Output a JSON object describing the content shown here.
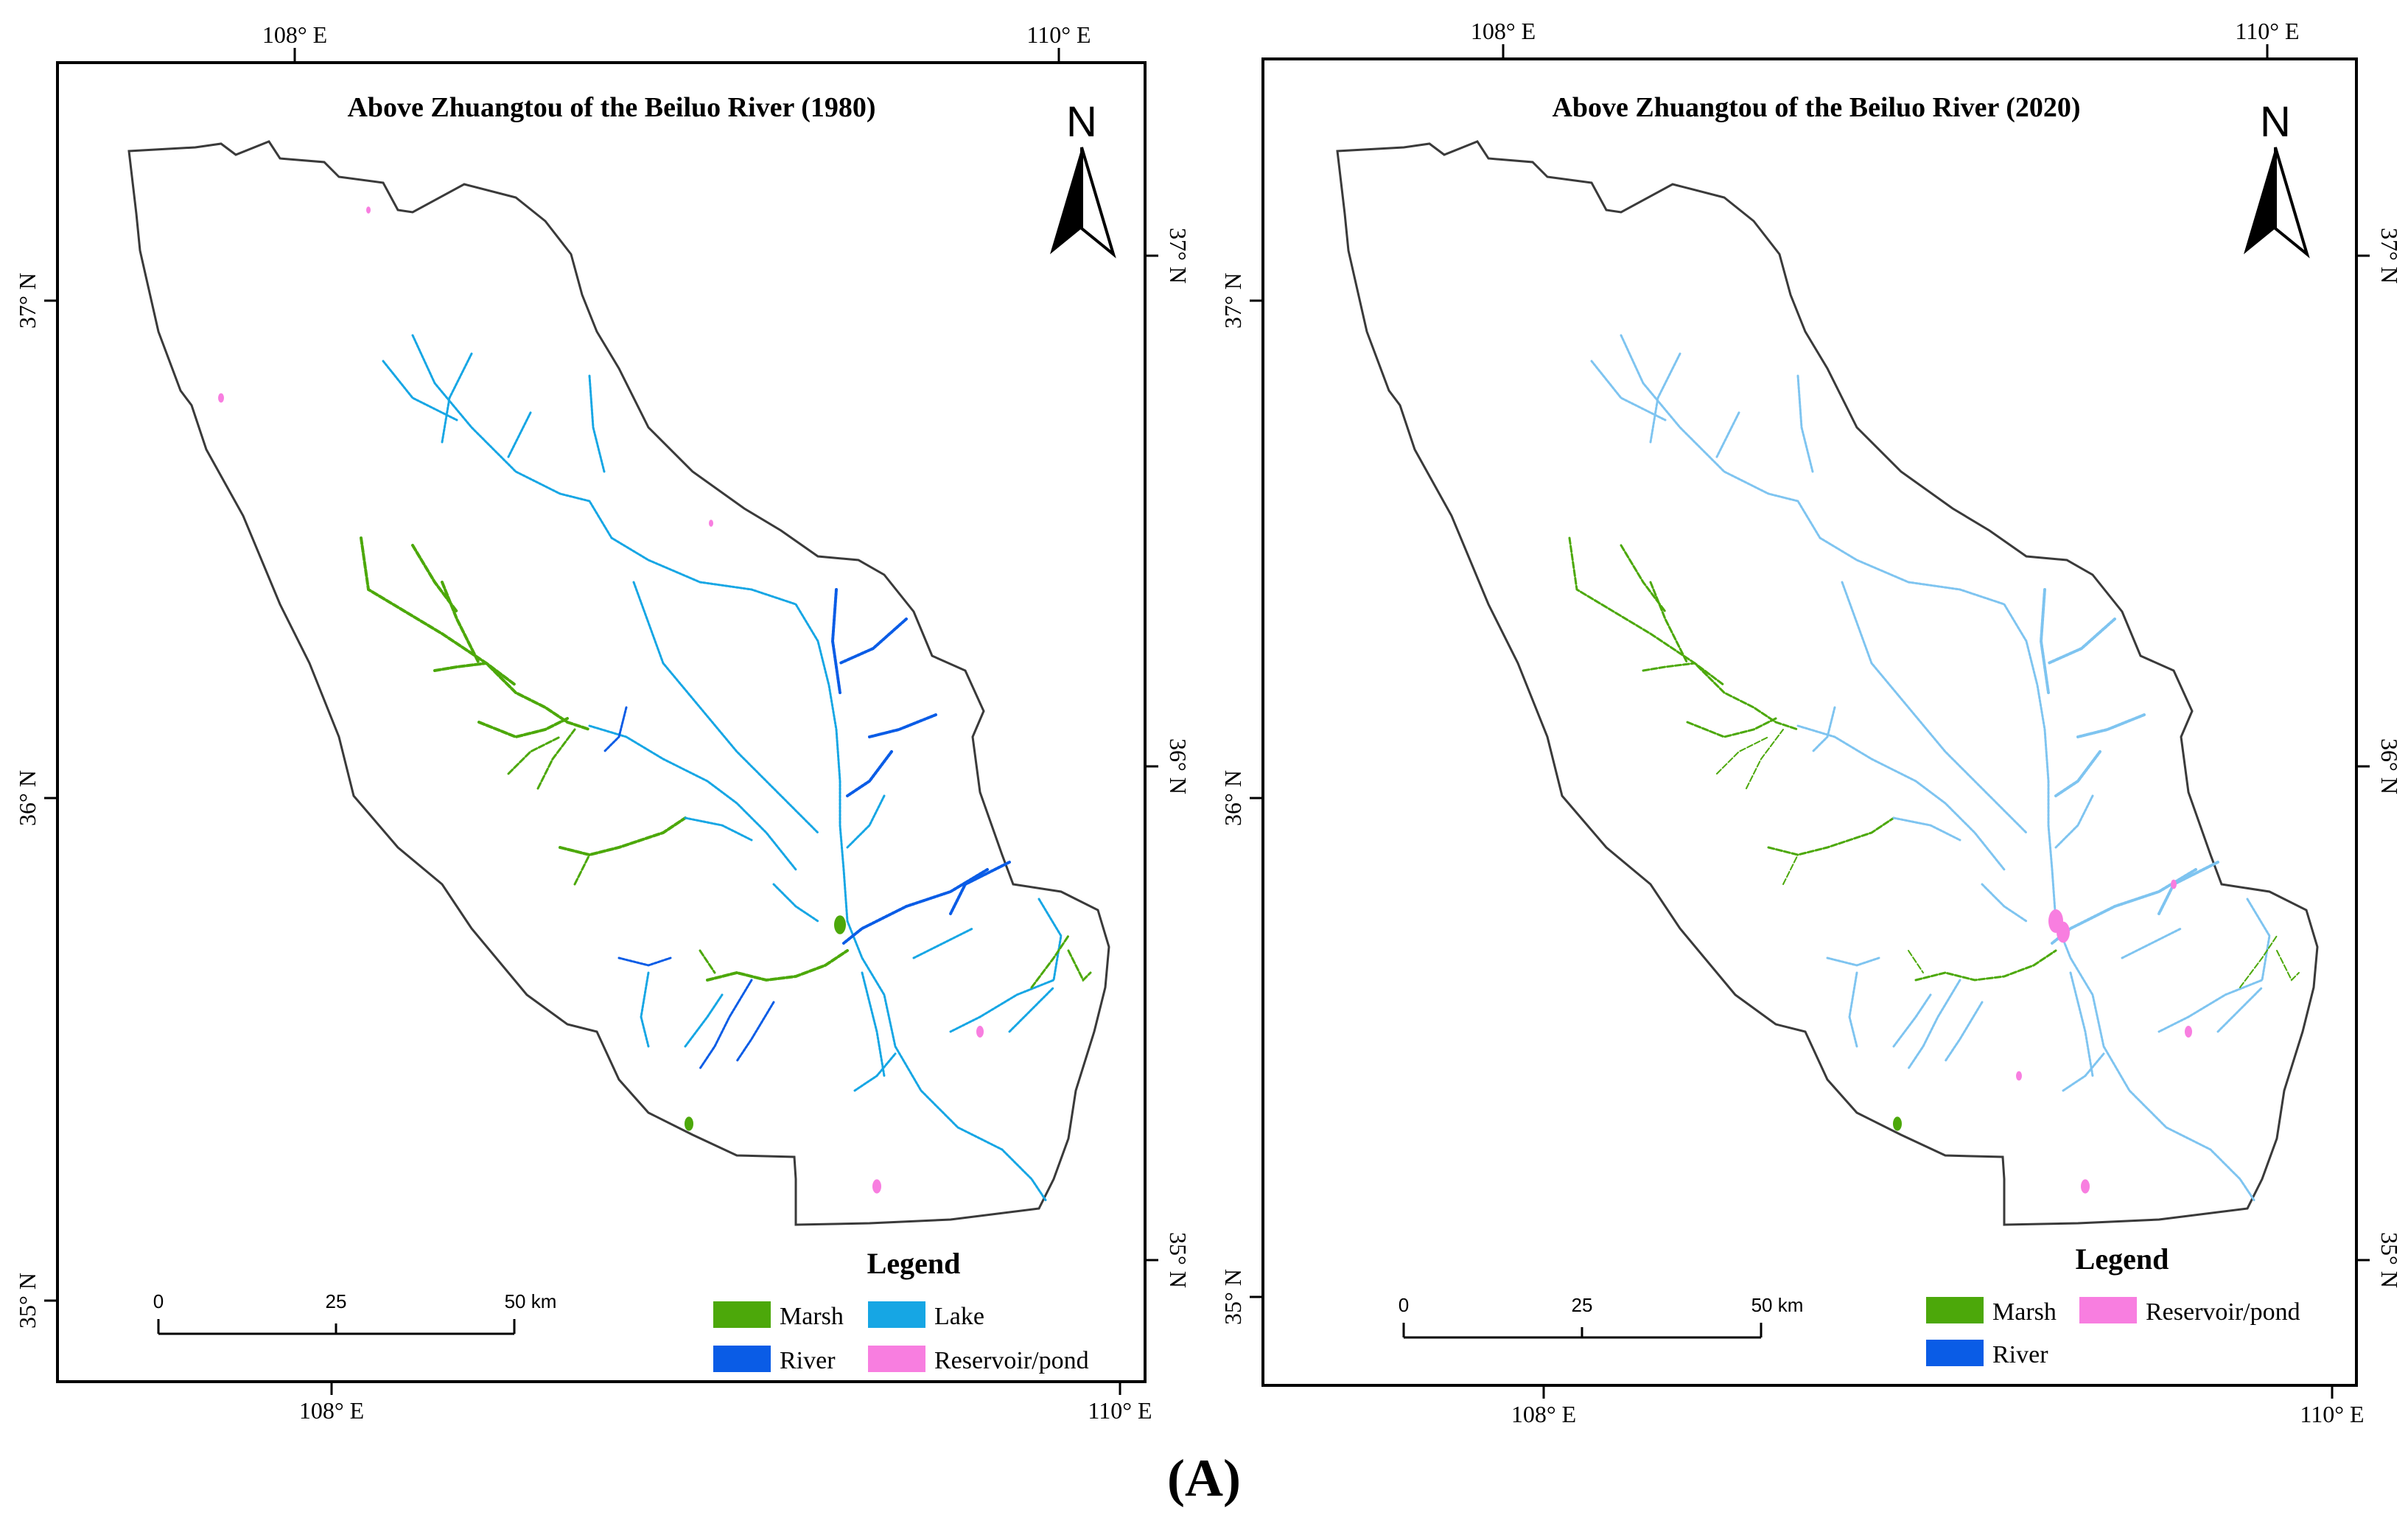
{
  "figure_label": "(A)",
  "colors": {
    "marsh": "#4ca80a",
    "river": "#0a5ce6",
    "lake": "#16a6e4",
    "reservoir": "#f87ee0",
    "lake_light": "#7ec4f0",
    "frame": "#000000",
    "basin_outline": "#3a3a3a"
  },
  "panels": [
    {
      "title": "Above Zhuangtou of the Beiluo River (1980)",
      "north_label": "N",
      "top_lon_labels": [
        "108° E",
        "110° E"
      ],
      "bottom_lon_labels": [
        "108° E",
        "110° E"
      ],
      "lat_labels": [
        "37° N",
        "36° N",
        "35° N"
      ],
      "scale_labels": [
        "0",
        "25",
        "50 km"
      ],
      "legend_title": "Legend",
      "legend_items": [
        {
          "label": "Marsh",
          "color_key": "marsh"
        },
        {
          "label": "Lake",
          "color_key": "lake"
        },
        {
          "label": "River",
          "color_key": "river"
        },
        {
          "label": "Reservoir/pond",
          "color_key": "reservoir"
        }
      ],
      "lake_style": "lake"
    },
    {
      "title": "Above Zhuangtou of the Beiluo River (2020)",
      "north_label": "N",
      "top_lon_labels": [
        "108° E",
        "110° E"
      ],
      "bottom_lon_labels": [
        "108° E",
        "110° E"
      ],
      "lat_labels": [
        "37° N",
        "36° N",
        "35° N"
      ],
      "scale_labels": [
        "0",
        "25",
        "50 km"
      ],
      "legend_title": "Legend",
      "legend_items": [
        {
          "label": "Marsh",
          "color_key": "marsh"
        },
        {
          "label": "Reservoir/pond",
          "color_key": "reservoir"
        },
        {
          "label": "River",
          "color_key": "river"
        }
      ],
      "lake_style": "lake_light"
    }
  ]
}
